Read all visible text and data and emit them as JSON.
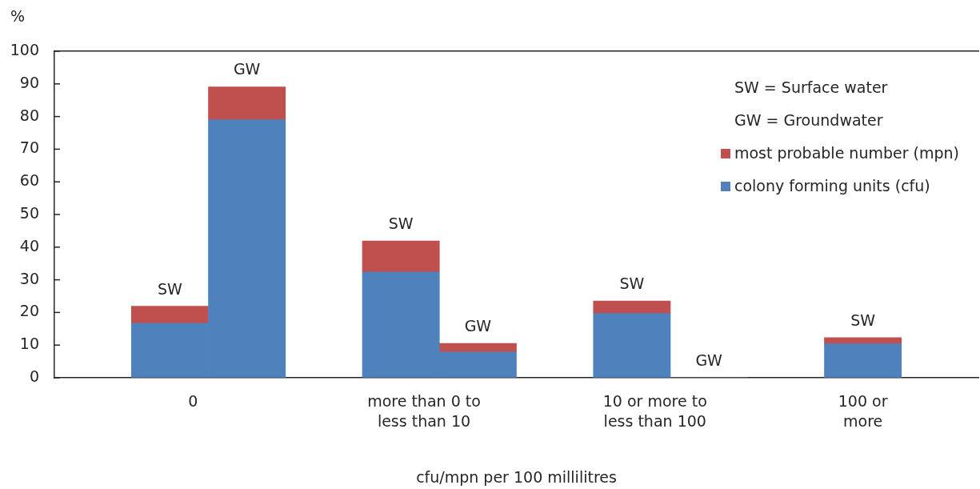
{
  "chart_data": {
    "type": "bar",
    "stacked": true,
    "categories": [
      null,
      "0",
      null,
      null,
      "more than 0 to less than 10",
      null,
      null,
      "10 or more to less than 100",
      null,
      null,
      "100 or more",
      null
    ],
    "series": [
      {
        "name": "colony forming units (cfu)",
        "color": "#4f81bd",
        "values": [
          null,
          16.7,
          79,
          null,
          32.4,
          7.9,
          null,
          19.7,
          0,
          null,
          10.4,
          null
        ]
      },
      {
        "name": "most probable number (mpn)",
        "color": "#c0504d",
        "values": [
          null,
          5.2,
          10.1,
          null,
          9.5,
          2.6,
          null,
          3.8,
          0,
          null,
          1.9,
          null
        ],
        "value_labels": [
          null,
          "SW",
          "GW",
          null,
          "SW",
          "GW",
          null,
          "SW",
          "GW",
          null,
          "SW",
          null
        ]
      }
    ],
    "xlabel": "cfu/mpn per 100 millilitres",
    "ylabel": "%",
    "ylim": [
      0,
      100
    ],
    "yticks": [
      0,
      10,
      20,
      30,
      40,
      50,
      60,
      70,
      80,
      90,
      100
    ],
    "legend": "top right",
    "annotations": [
      "SW = Surface water",
      "GW = Groundwater"
    ]
  }
}
